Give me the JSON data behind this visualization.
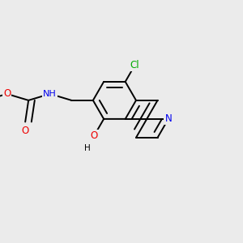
{
  "bg_color": "#ebebeb",
  "atom_colors": {
    "C": "#000000",
    "N": "#0000ee",
    "O": "#ee0000",
    "Cl": "#00aa00",
    "H": "#000000"
  },
  "bond_color": "#000000",
  "bond_width": 1.4,
  "dbo": 0.035,
  "figsize": [
    3.0,
    3.0
  ],
  "dpi": 100
}
